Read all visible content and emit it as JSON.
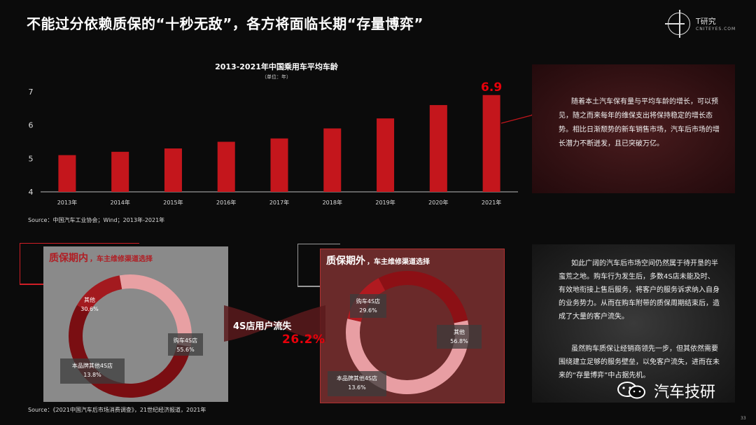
{
  "title": "不能过分依赖质保的“十秒无敌”，各方将面临长期“存量博弈”",
  "logo": {
    "name": "T研究",
    "sub": "CNITEYES.COM"
  },
  "chart_data": [
    {
      "type": "bar",
      "title": "2013-2021年中国乘用车平均车龄",
      "unit": "（单位：年）",
      "categories": [
        "2013年",
        "2014年",
        "2015年",
        "2016年",
        "2017年",
        "2018年",
        "2019年",
        "2020年",
        "2021年"
      ],
      "values": [
        5.1,
        5.2,
        5.3,
        5.5,
        5.6,
        5.9,
        6.2,
        6.6,
        6.9
      ],
      "highlight_label": "6.9",
      "ylim": [
        4,
        7
      ],
      "yticks": [
        "4",
        "5",
        "6",
        "7"
      ],
      "color": "#c4161c",
      "source": "Source：中国汽车工业协会；Wind；2013年-2021年"
    },
    {
      "type": "pie",
      "subtype": "donut",
      "slices": [
        {
          "name": "其他",
          "pct": "30.6%",
          "value": 30.6,
          "color": "#e8a0a3"
        },
        {
          "name": "购车4S店",
          "pct": "55.6%",
          "value": 55.6,
          "color": "#7a0e12"
        },
        {
          "name": "本品牌其他4S店",
          "pct": "13.8%",
          "value": 13.8,
          "color": "#a31a1f"
        }
      ]
    },
    {
      "type": "pie",
      "subtype": "donut",
      "slices": [
        {
          "name": "购车4S店",
          "pct": "29.6%",
          "value": 29.6,
          "color": "#8c1015"
        },
        {
          "name": "其他",
          "pct": "56.8%",
          "value": 56.8,
          "color": "#e89ea3"
        },
        {
          "name": "本品牌其他4S店",
          "pct": "13.6%",
          "value": 13.6,
          "color": "#b01a20"
        }
      ]
    }
  ],
  "text1": "随着本土汽车保有量与平均车龄的增长，可以预见，随之而来每年的维保支出将保持稳定的增长态势。相比日渐颓势的新车销售市场，汽车后市场的增长潜力不断迸发，且已突破万亿。",
  "text2_p1": "如此广阔的汽车后市场空间仍然属于待开垦的半蛮荒之地。购车行为发生后，多数4S店未能及时、有效地衔接上售后服务，将客户的服务诉求纳入自身的业务势力。从而在购车附带的质保周期结束后，造成了大量的客户流失。",
  "text2_p2": "虽然购车质保让经销商领先一步，但其依然需要围绕建立足够的服务壁垒，以免客户流失，进而在未来的“存量博弈”中占据先机。",
  "panel_left": {
    "head_big": "质保期内",
    "head_small": "，车主维修渠道选择"
  },
  "panel_right": {
    "head_big": "质保期外",
    "head_small": "，车主维修渠道选择"
  },
  "loss": {
    "label": "4S店用户流失",
    "value": "26.2%"
  },
  "source2": "Source：《2021中国汽车后市场消费调查》，21世纪经济报道，2021年",
  "watermark": "汽车技研",
  "page_number": "33"
}
